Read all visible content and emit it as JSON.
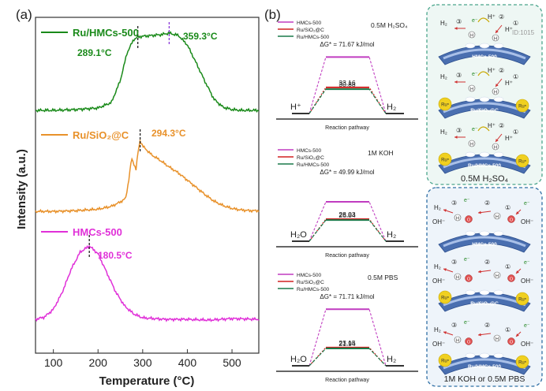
{
  "panel_a": {
    "label": "(a)",
    "chart_data": {
      "type": "line",
      "title": "",
      "xlabel": "Temperature (°C)",
      "ylabel": "Intensity (a.u.)",
      "xlim": [
        60,
        560
      ],
      "xticks": [
        100,
        200,
        300,
        400,
        500
      ],
      "xtick_labels": [
        "100",
        "200",
        "300",
        "400",
        "500"
      ],
      "series": [
        {
          "name": "Ru/HMCs-500",
          "color": "#1a8a1a",
          "peaks": [
            {
              "x": 289.1,
              "label": "289.1°C",
              "color": "#1a8a1a"
            },
            {
              "x": 359.3,
              "label": "359.3°C",
              "color": "#1a8a1a"
            }
          ],
          "x": [
            60,
            100,
            150,
            200,
            230,
            250,
            265,
            280,
            289.1,
            300,
            320,
            340,
            359.3,
            380,
            400,
            420,
            440,
            460,
            480,
            500,
            520,
            540,
            560
          ],
          "y": [
            0.02,
            0.02,
            0.03,
            0.05,
            0.12,
            0.4,
            0.75,
            0.92,
            0.95,
            0.96,
            0.97,
            0.98,
            1.0,
            0.97,
            0.85,
            0.62,
            0.38,
            0.16,
            0.06,
            0.03,
            0.02,
            0.02,
            0.02
          ]
        },
        {
          "name": "Ru/SiO₂@C",
          "color": "#e8912a",
          "peaks": [
            {
              "x": 294.3,
              "label": "294.3°C",
              "color": "#e8912a"
            }
          ],
          "x": [
            60,
            100,
            150,
            200,
            230,
            250,
            262,
            270,
            275,
            280,
            285,
            290,
            294.3,
            300,
            320,
            340,
            360,
            380,
            400,
            420,
            440,
            460,
            480,
            500,
            520,
            540,
            560
          ],
          "y": [
            0.02,
            0.02,
            0.03,
            0.05,
            0.09,
            0.15,
            0.2,
            0.5,
            0.75,
            0.68,
            0.6,
            0.85,
            1.0,
            0.92,
            0.8,
            0.72,
            0.63,
            0.55,
            0.45,
            0.35,
            0.25,
            0.16,
            0.1,
            0.06,
            0.04,
            0.03,
            0.03
          ]
        },
        {
          "name": "HMCs-500",
          "color": "#e030d8",
          "peaks": [
            {
              "x": 180.5,
              "label": "180.5°C",
              "color": "#e030d8"
            }
          ],
          "x": [
            60,
            80,
            100,
            120,
            140,
            160,
            180.5,
            200,
            220,
            240,
            260,
            280,
            300,
            350,
            400,
            450,
            500,
            560
          ],
          "y": [
            0.05,
            0.08,
            0.18,
            0.4,
            0.7,
            0.92,
            1.0,
            0.9,
            0.65,
            0.4,
            0.22,
            0.12,
            0.07,
            0.05,
            0.05,
            0.04,
            0.06,
            0.05
          ]
        }
      ]
    }
  },
  "panel_b": {
    "label": "(b)",
    "chart_data": [
      {
        "type": "energy-profile",
        "electrolyte": "0.5M H₂SO₄",
        "reactant": "H⁺",
        "product": "H₂",
        "xlabel": "Reaction pathway",
        "legend": [
          {
            "name": "HMCs-500",
            "color": "#c03cc0"
          },
          {
            "name": "Ru/SiO₂@C",
            "color": "#d02020"
          },
          {
            "name": "Ru/HMCs-500",
            "color": "#1a7a4a"
          }
        ],
        "barrier_label": "ΔG* = 71.67 kJ/mol",
        "barriers": [
          71.67,
          33.16,
          30.88
        ],
        "barrier_labels": [
          "33.16",
          "30.88"
        ]
      },
      {
        "type": "energy-profile",
        "electrolyte": "1M KOH",
        "reactant": "H₂O",
        "product": "H₂",
        "xlabel": "Reaction pathway",
        "legend": [
          {
            "name": "HMCs-500",
            "color": "#c03cc0"
          },
          {
            "name": "Ru/SiO₂@C",
            "color": "#d02020"
          },
          {
            "name": "Ru/HMCs-500",
            "color": "#1a7a4a"
          }
        ],
        "barrier_label": "ΔG* = 49.99 kJ/mol",
        "barriers": [
          49.99,
          28.03,
          26.84
        ],
        "barrier_labels": [
          "28.03",
          "26.84"
        ]
      },
      {
        "type": "energy-profile",
        "electrolyte": "0.5M PBS",
        "reactant": "H₂O",
        "product": "H₂",
        "xlabel": "Reaction pathway",
        "legend": [
          {
            "name": "HMCs-500",
            "color": "#c03cc0"
          },
          {
            "name": "Ru/SiO₂@C",
            "color": "#d02020"
          },
          {
            "name": "Ru/HMCs-500",
            "color": "#1a7a4a"
          }
        ],
        "barrier_label": "ΔG* = 71.71 kJ/mol",
        "barriers": [
          71.71,
          23.15,
          21.94
        ],
        "barrier_labels": [
          "23.15",
          "21.94"
        ]
      }
    ]
  },
  "schematics": {
    "acid": {
      "caption": "0.5M H₂SO₄",
      "supports": [
        "HMCs-500",
        "Ru/SiO₂@C",
        "Ru/HMCs-500"
      ],
      "species": {
        "h2": "H₂",
        "hplus": "H⁺",
        "e": "e⁻",
        "h": "H",
        "ru": "Ruⁿ",
        "step1": "①",
        "step2": "②",
        "step3": "③",
        "watermark": "ID:1015"
      }
    },
    "base": {
      "caption": "1M KOH or 0.5M PBS",
      "supports": [
        "HMCs-500",
        "Ru/SiO₂@C",
        "Ru/HMCs-500"
      ],
      "species": {
        "h2": "H₂",
        "oh": "OH⁻",
        "o": "O",
        "h": "H",
        "e": "e⁻",
        "ru": "Ruⁿ",
        "step1": "①",
        "step2": "②",
        "step3": "③"
      }
    }
  }
}
